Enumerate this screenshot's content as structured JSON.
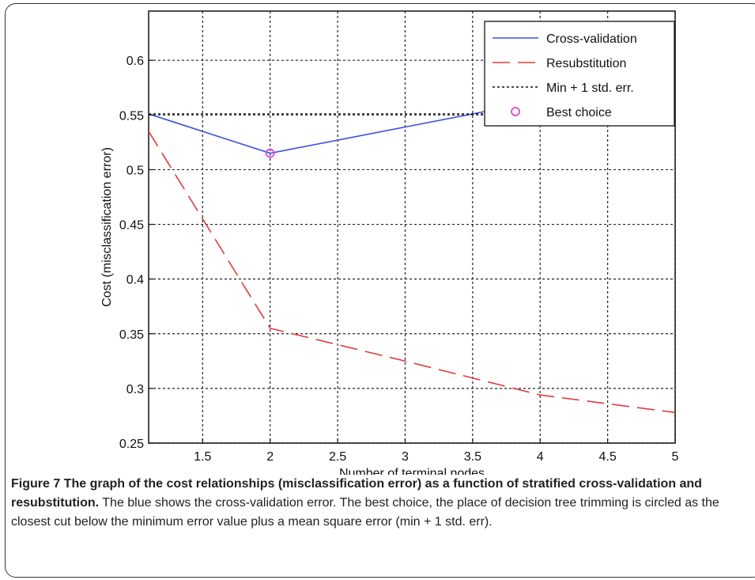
{
  "chart_data": {
    "type": "line",
    "xlabel": "Number of terminal nodes",
    "ylabel": "Cost (misclassification error)",
    "xlim": [
      1.1,
      5.0
    ],
    "ylim": [
      0.25,
      0.645
    ],
    "x_ticks": [
      1.5,
      2,
      2.5,
      3,
      3.5,
      4,
      4.5,
      5
    ],
    "x_tick_labels": [
      "1.5",
      "2",
      "2.5",
      "3",
      "3.5",
      "4",
      "4.5",
      "5"
    ],
    "y_ticks": [
      0.25,
      0.3,
      0.35,
      0.4,
      0.45,
      0.5,
      0.55,
      0.6
    ],
    "y_tick_labels": [
      "0.25",
      "0.3",
      "0.35",
      "0.4",
      "0.45",
      "0.5",
      "0.55",
      "0.6"
    ],
    "grid": true,
    "legend_position": "top-right",
    "series": [
      {
        "name": "Cross-validation",
        "style": "solid",
        "color": "#3b4fe0",
        "x": [
          1.1,
          2,
          3,
          4
        ],
        "y": [
          0.551,
          0.515,
          0.539,
          0.563
        ]
      },
      {
        "name": "Resubstitution",
        "style": "dashed",
        "color": "#e03b3b",
        "x": [
          1.1,
          2,
          3,
          4,
          5
        ],
        "y": [
          0.535,
          0.355,
          0.325,
          0.294,
          0.278
        ]
      },
      {
        "name": "Min + 1 std. err.",
        "style": "dotted",
        "color": "#111111",
        "x": [
          1.1,
          5
        ],
        "y": [
          0.551,
          0.551
        ]
      },
      {
        "name": "Best choice",
        "style": "marker",
        "color": "#e040e0",
        "x": [
          2
        ],
        "y": [
          0.515
        ]
      }
    ]
  },
  "caption": {
    "bold": "Figure 7 The graph of the cost relationships (misclassification error) as a function of stratified cross-validation and resubstitution.",
    "text": " The blue shows the cross-validation error. The best choice, the place of decision tree trimming is circled as the closest cut below the minimum error value plus a mean square error (min + 1 std. err)."
  }
}
